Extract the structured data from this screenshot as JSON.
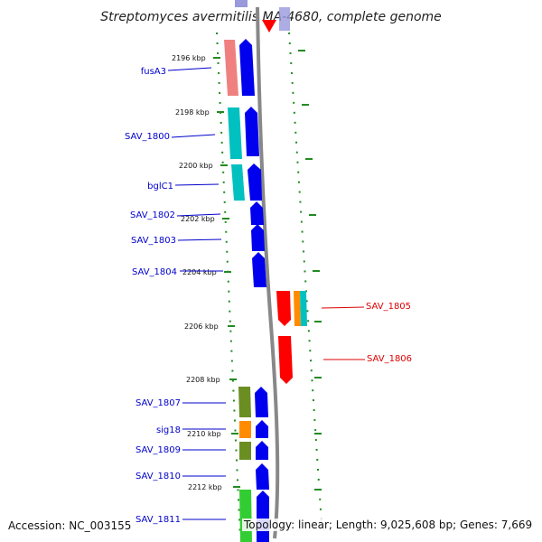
{
  "title": "Streptomyces avermitilis MA-4680, complete genome",
  "footer": {
    "accession": "Accession: NC_003155",
    "topology": "Topology: linear; Length: 9,025,608 bp; Genes: 7,669"
  },
  "colors": {
    "blue": "#0000ee",
    "red": "#ff0000",
    "pink": "#f08080",
    "cyan": "#00c0c0",
    "olive": "#6b8e23",
    "orange": "#ff8c00",
    "green": "#32cd32",
    "lavender": "#9999dd",
    "backbone": "#888888",
    "tick": "#228b22",
    "label_left": "#0000cc",
    "label_right": "#dd0000"
  },
  "scale_labels": [
    "2196 kbp",
    "2198 kbp",
    "2200 kbp",
    "2202 kbp",
    "2204 kbp",
    "2206 kbp",
    "2208 kbp",
    "2210 kbp",
    "2212 kbp"
  ],
  "genes_left": [
    "fusA3",
    "SAV_1800",
    "bglC1",
    "SAV_1802",
    "SAV_1803",
    "SAV_1804",
    "SAV_1807",
    "sig18",
    "SAV_1809",
    "SAV_1810",
    "SAV_1811"
  ],
  "genes_right": [
    "SAV_1805",
    "SAV_1806"
  ]
}
